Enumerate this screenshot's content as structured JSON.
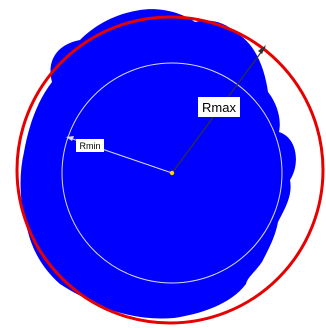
{
  "diagram": {
    "labels": {
      "rmax": "Rmax",
      "rmin": "Rmin"
    },
    "colors": {
      "background": "#ffffff",
      "blob_fill": "#0000ff",
      "outer_circle": "#e60000",
      "inner_circle": "#d9d9f2",
      "radius_line": "#333333",
      "center_mark": "#ffd400",
      "label_bg": "#ffffff"
    }
  }
}
